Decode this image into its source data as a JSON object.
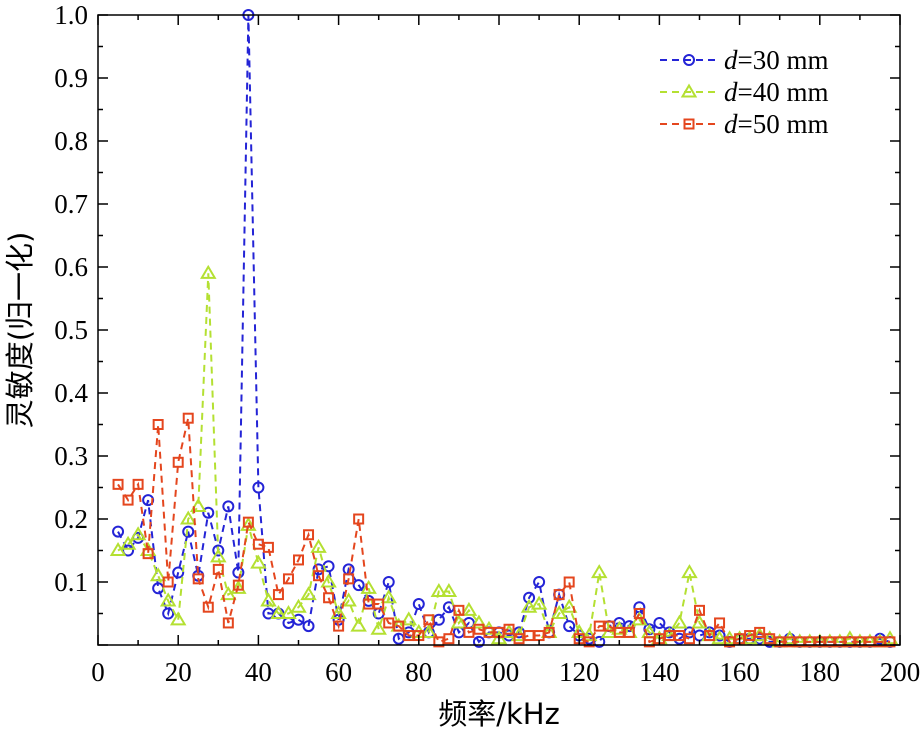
{
  "chart_data": {
    "type": "line",
    "xlabel": "频率/kHz",
    "ylabel": "灵敏度(归一化)",
    "xlim": [
      0,
      200
    ],
    "ylim": [
      0,
      1.0
    ],
    "x_ticks": [
      "0",
      "20",
      "40",
      "60",
      "80",
      "100",
      "120",
      "140",
      "160",
      "180",
      "200"
    ],
    "y_ticks": [
      "0.1",
      "0.2",
      "0.3",
      "0.4",
      "0.5",
      "0.6",
      "0.7",
      "0.8",
      "0.9",
      "1.0"
    ],
    "grid": false,
    "legend_position": "top-right",
    "series": [
      {
        "name": "d=30 mm",
        "legend_var": "d",
        "legend_rest": "=30 mm",
        "color": "#2424d6",
        "marker": "circle",
        "x": [
          5,
          7.5,
          10,
          12.5,
          15,
          17.5,
          20,
          22.5,
          25,
          27.5,
          30,
          32.5,
          35,
          37.5,
          40,
          42.5,
          45,
          47.5,
          50,
          52.5,
          55,
          57.5,
          60,
          62.5,
          65,
          67.5,
          70,
          72.5,
          75,
          77.5,
          80,
          82.5,
          85,
          87.5,
          90,
          92.5,
          95,
          97.5,
          100,
          102.5,
          105,
          107.5,
          110,
          112.5,
          115,
          117.5,
          120,
          122.5,
          125,
          127.5,
          130,
          132.5,
          135,
          137.5,
          140,
          142.5,
          145,
          147.5,
          150,
          152.5,
          155,
          157.5,
          160,
          162.5,
          165,
          167.5,
          170,
          172.5,
          175,
          177.5,
          180,
          182.5,
          185,
          187.5,
          190,
          192.5,
          195,
          197.5
        ],
        "values": [
          0.18,
          0.15,
          0.17,
          0.23,
          0.09,
          0.05,
          0.115,
          0.18,
          0.11,
          0.21,
          0.15,
          0.22,
          0.115,
          1.0,
          0.25,
          0.05,
          0.05,
          0.035,
          0.04,
          0.03,
          0.12,
          0.125,
          0.04,
          0.12,
          0.095,
          0.07,
          0.05,
          0.1,
          0.01,
          0.02,
          0.065,
          0.02,
          0.04,
          0.06,
          0.02,
          0.035,
          0.005,
          0.02,
          0.02,
          0.015,
          0.02,
          0.075,
          0.1,
          0.02,
          0.08,
          0.03,
          0.015,
          0.01,
          0.005,
          0.03,
          0.035,
          0.03,
          0.06,
          0.025,
          0.035,
          0.02,
          0.01,
          0.02,
          0.015,
          0.02,
          0.015,
          0.005,
          0.01,
          0.01,
          0.01,
          0.005,
          0.005,
          0.01,
          0.005,
          0.005,
          0.005,
          0.005,
          0.005,
          0.005,
          0.005,
          0.005,
          0.01,
          0.005
        ]
      },
      {
        "name": "d=40 mm",
        "legend_var": "d",
        "legend_rest": "=40 mm",
        "color": "#b4e032",
        "marker": "triangle",
        "x": [
          5,
          7.5,
          10,
          12.5,
          15,
          17.5,
          20,
          22.5,
          25,
          27.5,
          30,
          32.5,
          35,
          37.5,
          40,
          42.5,
          45,
          47.5,
          50,
          52.5,
          55,
          57.5,
          60,
          62.5,
          65,
          67.5,
          70,
          72.5,
          75,
          77.5,
          80,
          82.5,
          85,
          87.5,
          90,
          92.5,
          95,
          97.5,
          100,
          102.5,
          105,
          107.5,
          110,
          112.5,
          115,
          117.5,
          120,
          122.5,
          125,
          127.5,
          130,
          132.5,
          135,
          137.5,
          140,
          142.5,
          145,
          147.5,
          150,
          152.5,
          155,
          157.5,
          160,
          162.5,
          165,
          167.5,
          170,
          172.5,
          175,
          177.5,
          180,
          182.5,
          185,
          187.5,
          190,
          192.5,
          195,
          197.5
        ],
        "values": [
          0.15,
          0.16,
          0.175,
          0.15,
          0.11,
          0.07,
          0.04,
          0.2,
          0.22,
          0.59,
          0.14,
          0.08,
          0.09,
          0.19,
          0.13,
          0.07,
          0.05,
          0.05,
          0.06,
          0.08,
          0.155,
          0.1,
          0.05,
          0.07,
          0.03,
          0.09,
          0.025,
          0.075,
          0.03,
          0.04,
          0.02,
          0.02,
          0.085,
          0.085,
          0.035,
          0.055,
          0.035,
          0.025,
          0.01,
          0.02,
          0.015,
          0.06,
          0.065,
          0.02,
          0.05,
          0.06,
          0.02,
          0.015,
          0.115,
          0.02,
          0.025,
          0.02,
          0.04,
          0.02,
          0.01,
          0.015,
          0.035,
          0.115,
          0.035,
          0.015,
          0.01,
          0.01,
          0.01,
          0.01,
          0.015,
          0.01,
          0.005,
          0.01,
          0.005,
          0.005,
          0.005,
          0.005,
          0.005,
          0.01,
          0.005,
          0.005,
          0.005,
          0.01
        ]
      },
      {
        "name": "d=50 mm",
        "legend_var": "d",
        "legend_rest": "=50 mm",
        "color": "#e4461e",
        "marker": "square",
        "x": [
          5,
          7.5,
          10,
          12.5,
          15,
          17.5,
          20,
          22.5,
          25,
          27.5,
          30,
          32.5,
          35,
          37.5,
          40,
          42.5,
          45,
          47.5,
          50,
          52.5,
          55,
          57.5,
          60,
          62.5,
          65,
          67.5,
          70,
          72.5,
          75,
          77.5,
          80,
          82.5,
          85,
          87.5,
          90,
          92.5,
          95,
          97.5,
          100,
          102.5,
          105,
          107.5,
          110,
          112.5,
          115,
          117.5,
          120,
          122.5,
          125,
          127.5,
          130,
          132.5,
          135,
          137.5,
          140,
          142.5,
          145,
          147.5,
          150,
          152.5,
          155,
          157.5,
          160,
          162.5,
          165,
          167.5,
          170,
          172.5,
          175,
          177.5,
          180,
          182.5,
          185,
          187.5,
          190,
          192.5,
          195,
          197.5
        ],
        "values": [
          0.255,
          0.23,
          0.255,
          0.145,
          0.35,
          0.1,
          0.29,
          0.36,
          0.105,
          0.06,
          0.12,
          0.035,
          0.095,
          0.195,
          0.16,
          0.155,
          0.08,
          0.105,
          0.135,
          0.175,
          0.11,
          0.075,
          0.03,
          0.105,
          0.2,
          0.065,
          0.065,
          0.035,
          0.03,
          0.015,
          0.015,
          0.04,
          0.005,
          0.01,
          0.055,
          0.02,
          0.025,
          0.02,
          0.02,
          0.025,
          0.01,
          0.015,
          0.015,
          0.02,
          0.08,
          0.1,
          0.01,
          0.005,
          0.03,
          0.03,
          0.02,
          0.02,
          0.05,
          0.005,
          0.01,
          0.015,
          0.015,
          0.01,
          0.055,
          0.015,
          0.035,
          0.005,
          0.01,
          0.015,
          0.02,
          0.01,
          0.005,
          0.005,
          0.005,
          0.005,
          0.005,
          0.005,
          0.005,
          0.005,
          0.005,
          0.005,
          0.005,
          0.005
        ]
      }
    ]
  }
}
